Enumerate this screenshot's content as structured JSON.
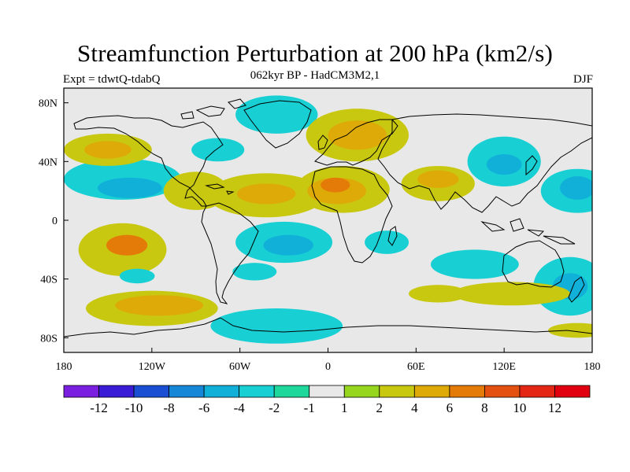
{
  "title": "Streamfunction Perturbation at 200 hPa (km2/s)",
  "subtitle_left": "Expt = tdwtQ-tdabQ",
  "subtitle_center": "062kyr BP - HadCM3M2,1",
  "subtitle_right": "DJF",
  "axes": {
    "x_ticks": [
      {
        "lon": -180,
        "label": "180"
      },
      {
        "lon": -120,
        "label": "120W"
      },
      {
        "lon": -60,
        "label": "60W"
      },
      {
        "lon": 0,
        "label": "0"
      },
      {
        "lon": 60,
        "label": "60E"
      },
      {
        "lon": 120,
        "label": "120E"
      },
      {
        "lon": 180,
        "label": "180"
      }
    ],
    "y_ticks": [
      {
        "lat": 80,
        "label": "80N"
      },
      {
        "lat": 40,
        "label": "40N"
      },
      {
        "lat": 0,
        "label": "0"
      },
      {
        "lat": -40,
        "label": "40S"
      },
      {
        "lat": -80,
        "label": "80S"
      }
    ],
    "lon_range": [
      -180,
      180
    ],
    "lat_range": [
      -90,
      90
    ]
  },
  "colorbar": {
    "colors": [
      "#7a1fe0",
      "#3a1bd6",
      "#1a4fd4",
      "#1686d6",
      "#10b0d8",
      "#18d0d4",
      "#1ed79a",
      "#e8e8e8",
      "#96d61e",
      "#c8c810",
      "#deaa08",
      "#e47a08",
      "#e45010",
      "#e42614",
      "#e00010"
    ],
    "labels": [
      "-12",
      "-10",
      "-8",
      "-6",
      "-4",
      "-2",
      "-1",
      "1",
      "2",
      "4",
      "6",
      "8",
      "10",
      "12"
    ]
  },
  "field": {
    "background": "#e8e8e8",
    "blobs": [
      {
        "lon": -140,
        "lat": 28,
        "rx": 40,
        "ry": 14,
        "level": -2
      },
      {
        "lon": -135,
        "lat": 22,
        "rx": 22,
        "ry": 7,
        "level": -4
      },
      {
        "lon": -150,
        "lat": 48,
        "rx": 30,
        "ry": 11,
        "level": 2
      },
      {
        "lon": -150,
        "lat": 48,
        "rx": 16,
        "ry": 6,
        "level": 4
      },
      {
        "lon": -140,
        "lat": -20,
        "rx": 30,
        "ry": 18,
        "level": 2
      },
      {
        "lon": -137,
        "lat": -17,
        "rx": 14,
        "ry": 7,
        "level": 6
      },
      {
        "lon": -130,
        "lat": -38,
        "rx": 12,
        "ry": 5,
        "level": -2
      },
      {
        "lon": -120,
        "lat": -60,
        "rx": 45,
        "ry": 12,
        "level": 2
      },
      {
        "lon": -115,
        "lat": -58,
        "rx": 30,
        "ry": 7,
        "level": 4
      },
      {
        "lon": -35,
        "lat": 72,
        "rx": 28,
        "ry": 13,
        "level": -2
      },
      {
        "lon": -75,
        "lat": 48,
        "rx": 18,
        "ry": 8,
        "level": -2
      },
      {
        "lon": -90,
        "lat": 20,
        "rx": 22,
        "ry": 13,
        "level": 2
      },
      {
        "lon": -42,
        "lat": 17,
        "rx": 40,
        "ry": 15,
        "level": 2
      },
      {
        "lon": -42,
        "lat": 18,
        "rx": 20,
        "ry": 7,
        "level": 4
      },
      {
        "lon": -30,
        "lat": -15,
        "rx": 33,
        "ry": 14,
        "level": -2
      },
      {
        "lon": -27,
        "lat": -17,
        "rx": 17,
        "ry": 7,
        "level": -4
      },
      {
        "lon": -50,
        "lat": -35,
        "rx": 15,
        "ry": 6,
        "level": -2
      },
      {
        "lon": -35,
        "lat": -72,
        "rx": 45,
        "ry": 12,
        "level": -2
      },
      {
        "lon": 10,
        "lat": 21,
        "rx": 32,
        "ry": 16,
        "level": 2
      },
      {
        "lon": 6,
        "lat": 20,
        "rx": 20,
        "ry": 9,
        "level": 4
      },
      {
        "lon": 5,
        "lat": 24,
        "rx": 10,
        "ry": 5,
        "level": 6
      },
      {
        "lon": 20,
        "lat": 58,
        "rx": 35,
        "ry": 18,
        "level": 2
      },
      {
        "lon": 20,
        "lat": 58,
        "rx": 20,
        "ry": 10,
        "level": 4
      },
      {
        "lon": 40,
        "lat": -15,
        "rx": 15,
        "ry": 8,
        "level": -2
      },
      {
        "lon": 75,
        "lat": 25,
        "rx": 25,
        "ry": 12,
        "level": 2
      },
      {
        "lon": 75,
        "lat": 28,
        "rx": 14,
        "ry": 6,
        "level": 4
      },
      {
        "lon": 120,
        "lat": 40,
        "rx": 25,
        "ry": 17,
        "level": -2
      },
      {
        "lon": 120,
        "lat": 38,
        "rx": 12,
        "ry": 7,
        "level": -4
      },
      {
        "lon": 100,
        "lat": -30,
        "rx": 30,
        "ry": 10,
        "level": -2
      },
      {
        "lon": 170,
        "lat": 20,
        "rx": 25,
        "ry": 15,
        "level": -2
      },
      {
        "lon": 170,
        "lat": 22,
        "rx": 12,
        "ry": 8,
        "level": -4
      },
      {
        "lon": 165,
        "lat": -45,
        "rx": 25,
        "ry": 20,
        "level": -2
      },
      {
        "lon": 165,
        "lat": -45,
        "rx": 12,
        "ry": 9,
        "level": -4
      },
      {
        "lon": 125,
        "lat": -50,
        "rx": 40,
        "ry": 8,
        "level": 2
      },
      {
        "lon": 75,
        "lat": -50,
        "rx": 20,
        "ry": 6,
        "level": 2
      },
      {
        "lon": 170,
        "lat": -75,
        "rx": 20,
        "ry": 5,
        "level": 2
      }
    ]
  }
}
